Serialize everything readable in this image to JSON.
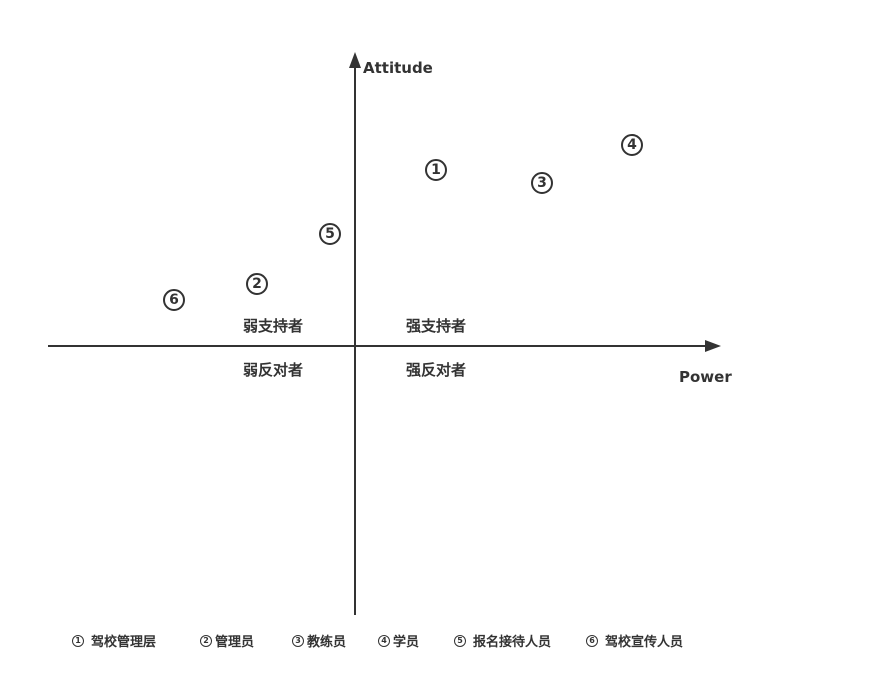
{
  "axes": {
    "y_label": "Attitude",
    "x_label": "Power"
  },
  "quadrants": {
    "upper_left": "弱支持者",
    "upper_right": "强支持者",
    "lower_left": "弱反对者",
    "lower_right": "强反对者"
  },
  "markers": [
    {
      "id": "1",
      "label": "1"
    },
    {
      "id": "2",
      "label": "2"
    },
    {
      "id": "3",
      "label": "3"
    },
    {
      "id": "4",
      "label": "4"
    },
    {
      "id": "5",
      "label": "5"
    },
    {
      "id": "6",
      "label": "6"
    }
  ],
  "legend": [
    {
      "num": "1",
      "text": "驾校管理层"
    },
    {
      "num": "2",
      "text": "管理员"
    },
    {
      "num": "3",
      "text": "教练员"
    },
    {
      "num": "4",
      "text": "学员"
    },
    {
      "num": "5",
      "text": "报名接待人员"
    },
    {
      "num": "6",
      "text": "驾校宣传人员"
    }
  ],
  "colors": {
    "ink": "#333333",
    "background": "#ffffff"
  }
}
